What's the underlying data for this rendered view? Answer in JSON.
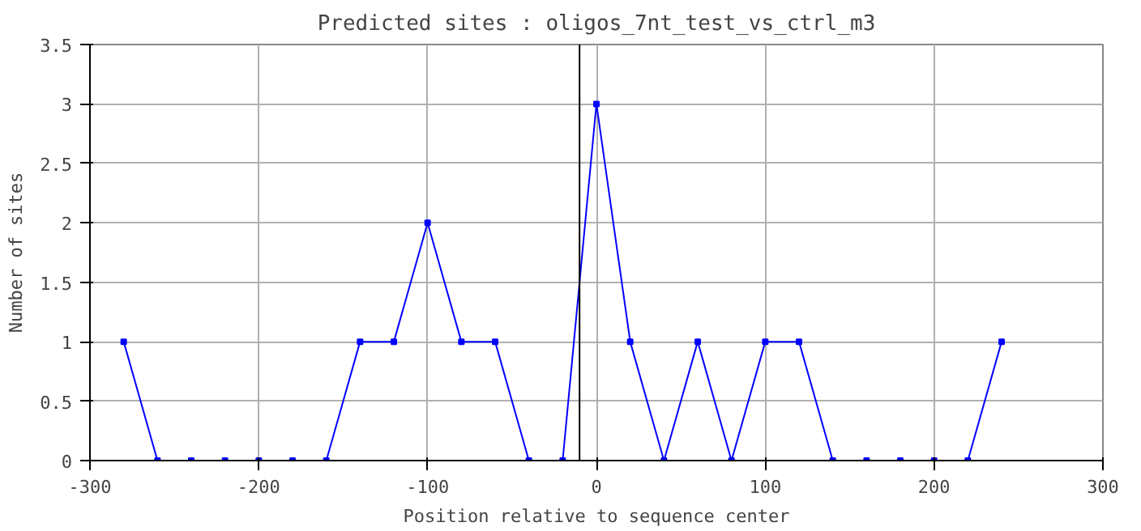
{
  "chart_data": {
    "type": "line",
    "title": "Predicted sites : oligos_7nt_test_vs_ctrl_m3",
    "xlabel": "Position relative to sequence center",
    "ylabel": "Number of sites",
    "x": [
      -280,
      -260,
      -240,
      -220,
      -200,
      -180,
      -160,
      -140,
      -120,
      -100,
      -80,
      -60,
      -40,
      -20,
      0,
      20,
      40,
      60,
      80,
      100,
      120,
      140,
      160,
      180,
      200,
      220,
      240
    ],
    "series": [
      {
        "color": "#0000ff",
        "values": [
          1,
          0,
          0,
          0,
          0,
          0,
          0,
          1,
          1,
          2,
          1,
          1,
          0,
          0,
          3,
          1,
          0,
          1,
          0,
          1,
          1,
          0,
          0,
          0,
          0,
          0,
          1
        ]
      }
    ],
    "xlim": [
      -300,
      300
    ],
    "xticks": [
      -300,
      -200,
      -100,
      0,
      100,
      200,
      300
    ],
    "ylim": [
      0,
      3.5
    ],
    "yticks": [
      0,
      0.5,
      1,
      1.5,
      2,
      2.5,
      3,
      3.5
    ],
    "ref_lines": [
      {
        "axis": "x",
        "value": -10,
        "color": "#000000"
      }
    ],
    "grid": true,
    "marker": "square",
    "line_style": "solid"
  }
}
